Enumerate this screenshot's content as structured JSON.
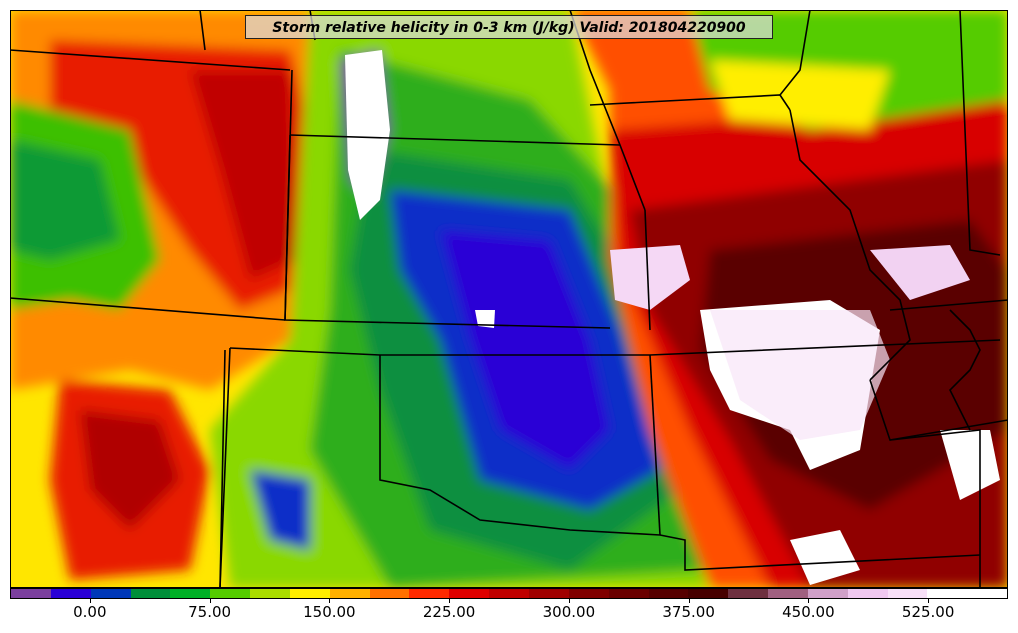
{
  "title": "Storm relative helicity in 0-3 km (J/kg) Valid: 201804220900",
  "colorbar": {
    "min": -50,
    "max": 575,
    "step": 25,
    "tick_labels": [
      "0.00",
      "75.00",
      "150.00",
      "225.00",
      "300.00",
      "375.00",
      "450.00",
      "525.00"
    ],
    "tick_values": [
      0,
      75,
      150,
      225,
      300,
      375,
      450,
      525
    ],
    "colors": [
      "#7b3f9e",
      "#2a00d6",
      "#0038b8",
      "#008f3a",
      "#00b026",
      "#55cc00",
      "#aadd00",
      "#ffee00",
      "#ffb000",
      "#ff7000",
      "#ff2a00",
      "#e00000",
      "#c00000",
      "#a00000",
      "#800000",
      "#6a0000",
      "#560000",
      "#460000",
      "#6e3040",
      "#a06080",
      "#d0a0c8",
      "#f0c8f0",
      "#f8e0f8",
      "#ffffff",
      "#ffffff"
    ]
  }
}
